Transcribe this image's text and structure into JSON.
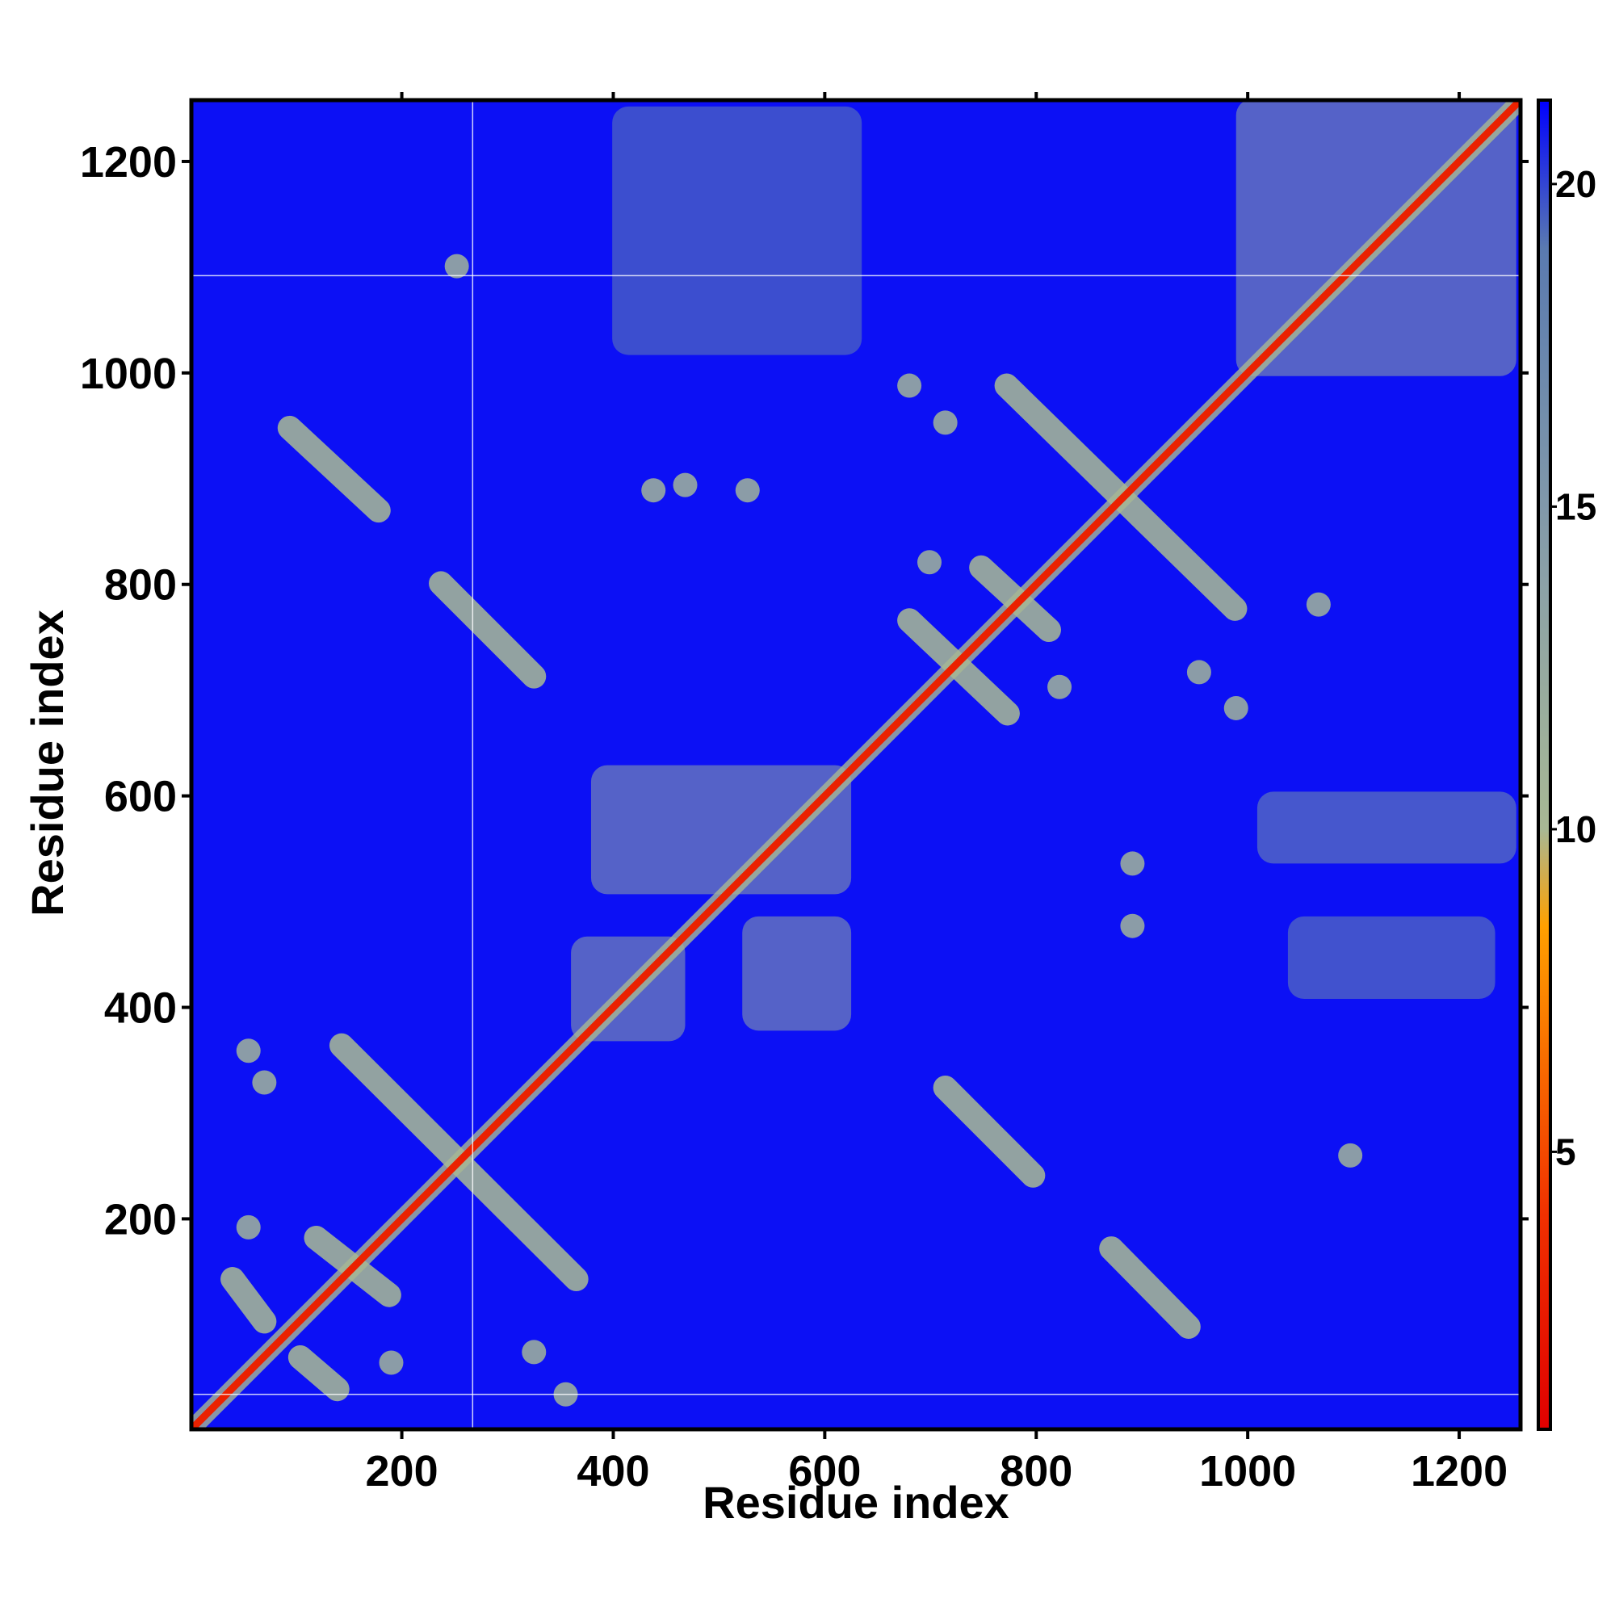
{
  "chart_data": {
    "type": "contact_map",
    "xlabel": "Residue index",
    "ylabel": "Residue index",
    "xlim": [
      1,
      1258
    ],
    "ylim": [
      1,
      1258
    ],
    "xticks": [
      200,
      400,
      600,
      800,
      1000,
      1200
    ],
    "yticks": [
      200,
      400,
      600,
      800,
      1000,
      1200
    ],
    "background_value": 21,
    "clim": [
      0.7,
      21.3
    ],
    "cticks": [
      5,
      10,
      15,
      20
    ],
    "colorscale": [
      [
        0.7,
        "#e00000"
      ],
      [
        4,
        "#f03000"
      ],
      [
        8.5,
        "#ffa000"
      ],
      [
        10,
        "#a8b894"
      ],
      [
        14,
        "#8aa0a8"
      ],
      [
        19,
        "#5a7ab0"
      ],
      [
        21.3,
        "#0000ff"
      ]
    ],
    "reference_lines": {
      "x": [
        267
      ],
      "y": [
        1092,
        34
      ]
    },
    "diagonal": {
      "x": [
        1,
        1258
      ],
      "y": [
        1,
        1258
      ],
      "value": 3
    },
    "stripes": [
      {
        "x": [
          94,
          178
        ],
        "y": [
          948,
          870
        ],
        "value": 11
      },
      {
        "x": [
          237,
          325
        ],
        "y": [
          801,
          713
        ],
        "value": 11
      },
      {
        "x": [
          143,
          365
        ],
        "y": [
          364,
          143
        ],
        "value": 11
      },
      {
        "x": [
          40,
          70
        ],
        "y": [
          143,
          103
        ],
        "value": 11
      },
      {
        "x": [
          104,
          139
        ],
        "y": [
          69,
          39
        ],
        "value": 11
      },
      {
        "x": [
          119,
          188
        ],
        "y": [
          182,
          128
        ],
        "value": 11
      },
      {
        "x": [
          714,
          797
        ],
        "y": [
          324,
          241
        ],
        "value": 11
      },
      {
        "x": [
          871,
          944
        ],
        "y": [
          172,
          98
        ],
        "value": 11
      },
      {
        "x": [
          772,
          988
        ],
        "y": [
          988,
          777
        ],
        "value": 11
      },
      {
        "x": [
          680,
          773
        ],
        "y": [
          766,
          678
        ],
        "value": 11
      },
      {
        "x": [
          748,
          812
        ],
        "y": [
          816,
          757
        ],
        "value": 11
      }
    ],
    "blobs": [
      {
        "x": 55,
        "y": 359,
        "value": 12
      },
      {
        "x": 70,
        "y": 329,
        "value": 12
      },
      {
        "x": 55,
        "y": 192,
        "value": 12
      },
      {
        "x": 190,
        "y": 64,
        "value": 12
      },
      {
        "x": 325,
        "y": 74,
        "value": 12
      },
      {
        "x": 355,
        "y": 34,
        "value": 12
      },
      {
        "x": 252,
        "y": 1101,
        "value": 12
      },
      {
        "x": 680,
        "y": 988,
        "value": 12
      },
      {
        "x": 699,
        "y": 821,
        "value": 12
      },
      {
        "x": 822,
        "y": 703,
        "value": 12
      },
      {
        "x": 989,
        "y": 683,
        "value": 12
      },
      {
        "x": 954,
        "y": 717,
        "value": 12
      },
      {
        "x": 714,
        "y": 953,
        "value": 12
      },
      {
        "x": 891,
        "y": 536,
        "value": 12
      },
      {
        "x": 891,
        "y": 477,
        "value": 12
      },
      {
        "x": 1097,
        "y": 260,
        "value": 12
      },
      {
        "x": 1067,
        "y": 781,
        "value": 12
      },
      {
        "x": 468,
        "y": 894,
        "value": 12
      },
      {
        "x": 527,
        "y": 889,
        "value": 12
      },
      {
        "x": 438,
        "y": 889,
        "value": 12
      }
    ],
    "patches": [
      {
        "x": [
          379,
          625
        ],
        "y": [
          507,
          629
        ],
        "value": 13
      },
      {
        "x": [
          360,
          468
        ],
        "y": [
          368,
          467
        ],
        "value": 13
      },
      {
        "x": [
          522,
          625
        ],
        "y": [
          378,
          486
        ],
        "value": 13
      },
      {
        "x": [
          989,
          1254
        ],
        "y": [
          997,
          1259
        ],
        "value": 13
      },
      {
        "x": [
          1009,
          1254
        ],
        "y": [
          536,
          604
        ],
        "value": 16
      },
      {
        "x": [
          1038,
          1234
        ],
        "y": [
          408,
          486
        ],
        "value": 17
      },
      {
        "x": [
          399,
          635
        ],
        "y": [
          1017,
          1252
        ],
        "value": 18
      }
    ]
  }
}
